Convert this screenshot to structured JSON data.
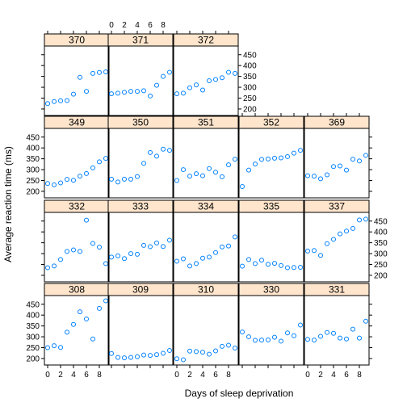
{
  "chart_data": {
    "type": "scatter",
    "layout": "trellis",
    "xlabel": "Days of sleep deprivation",
    "ylabel": "Average reaction time (ms)",
    "xlim": [
      -0.5,
      9.5
    ],
    "ylim": [
      170,
      490
    ],
    "x_ticks": [
      0,
      2,
      4,
      6,
      8
    ],
    "y_ticks": [
      200,
      250,
      300,
      350,
      400,
      450
    ],
    "x_ticklabels": [
      "0",
      "2",
      "4",
      "6",
      "8"
    ],
    "y_ticklabels": [
      "200",
      "250",
      "300",
      "350",
      "400",
      "450"
    ],
    "grid": false,
    "colors": {
      "point": "#0080ff",
      "strip": "#ffe5cc"
    },
    "x": [
      0,
      1,
      2,
      3,
      4,
      5,
      6,
      7,
      8,
      9
    ],
    "panels": [
      {
        "subject": "308",
        "values": [
          250,
          259,
          251,
          321,
          357,
          415,
          382,
          290,
          431,
          466
        ]
      },
      {
        "subject": "309",
        "values": [
          223,
          205,
          203,
          205,
          208,
          216,
          214,
          218,
          224,
          237
        ]
      },
      {
        "subject": "310",
        "values": [
          199,
          194,
          234,
          232,
          229,
          220,
          235,
          256,
          261,
          248
        ]
      },
      {
        "subject": "330",
        "values": [
          322,
          300,
          284,
          285,
          286,
          298,
          280,
          318,
          305,
          354
        ]
      },
      {
        "subject": "331",
        "values": [
          288,
          285,
          302,
          320,
          316,
          294,
          290,
          335,
          294,
          372
        ]
      },
      {
        "subject": "332",
        "values": [
          235,
          243,
          273,
          310,
          317,
          310,
          454,
          347,
          330,
          254
        ]
      },
      {
        "subject": "333",
        "values": [
          284,
          290,
          277,
          300,
          297,
          338,
          332,
          349,
          333,
          362
        ]
      },
      {
        "subject": "334",
        "values": [
          265,
          276,
          243,
          254,
          279,
          284,
          305,
          331,
          335,
          377
        ]
      },
      {
        "subject": "335",
        "values": [
          242,
          273,
          254,
          270,
          251,
          255,
          245,
          235,
          236,
          237
        ]
      },
      {
        "subject": "337",
        "values": [
          312,
          314,
          292,
          346,
          366,
          391,
          404,
          416,
          455,
          459
        ]
      },
      {
        "subject": "349",
        "values": [
          236,
          230,
          239,
          255,
          251,
          270,
          282,
          308,
          336,
          352
        ]
      },
      {
        "subject": "350",
        "values": [
          256,
          243,
          256,
          256,
          268,
          329,
          379,
          362,
          394,
          389
        ]
      },
      {
        "subject": "351",
        "values": [
          250,
          300,
          270,
          281,
          272,
          305,
          288,
          267,
          322,
          348
        ]
      },
      {
        "subject": "352",
        "values": [
          222,
          298,
          326,
          347,
          349,
          353,
          354,
          360,
          376,
          389
        ]
      },
      {
        "subject": "369",
        "values": [
          272,
          270,
          258,
          276,
          314,
          317,
          298,
          348,
          340,
          366
        ]
      },
      {
        "subject": "370",
        "values": [
          225,
          234,
          238,
          239,
          268,
          346,
          281,
          364,
          368,
          371
        ]
      },
      {
        "subject": "371",
        "values": [
          270,
          273,
          277,
          281,
          281,
          284,
          260,
          309,
          350,
          369
        ]
      },
      {
        "subject": "372",
        "values": [
          270,
          273,
          298,
          311,
          287,
          330,
          336,
          344,
          369,
          364
        ]
      }
    ]
  }
}
